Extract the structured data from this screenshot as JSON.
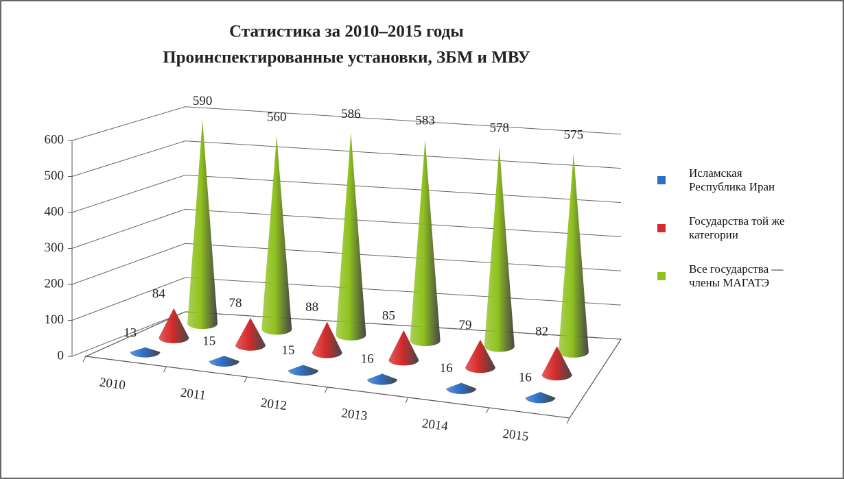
{
  "chart_data": {
    "type": "cone3d",
    "title": [
      "Статистика за 2010–2015 годы",
      "Проинспектированные установки, ЗБМ и МВУ"
    ],
    "categories": [
      "2010",
      "2011",
      "2012",
      "2013",
      "2014",
      "2015"
    ],
    "series": [
      {
        "name": "Исламская Республика Иран",
        "color": "#2e6fc4",
        "values": [
          13,
          15,
          15,
          16,
          16,
          16
        ]
      },
      {
        "name": "Государства той же категории",
        "color": "#d42a2a",
        "values": [
          84,
          78,
          88,
          85,
          79,
          82
        ]
      },
      {
        "name": "Все государства — члены МАГАТЭ",
        "color": "#8fc11e",
        "values": [
          590,
          560,
          586,
          583,
          578,
          575
        ]
      }
    ],
    "ylim": [
      0,
      600
    ],
    "yticks": [
      0,
      100,
      200,
      300,
      400,
      500,
      600
    ],
    "grid": true,
    "legend": "right"
  }
}
